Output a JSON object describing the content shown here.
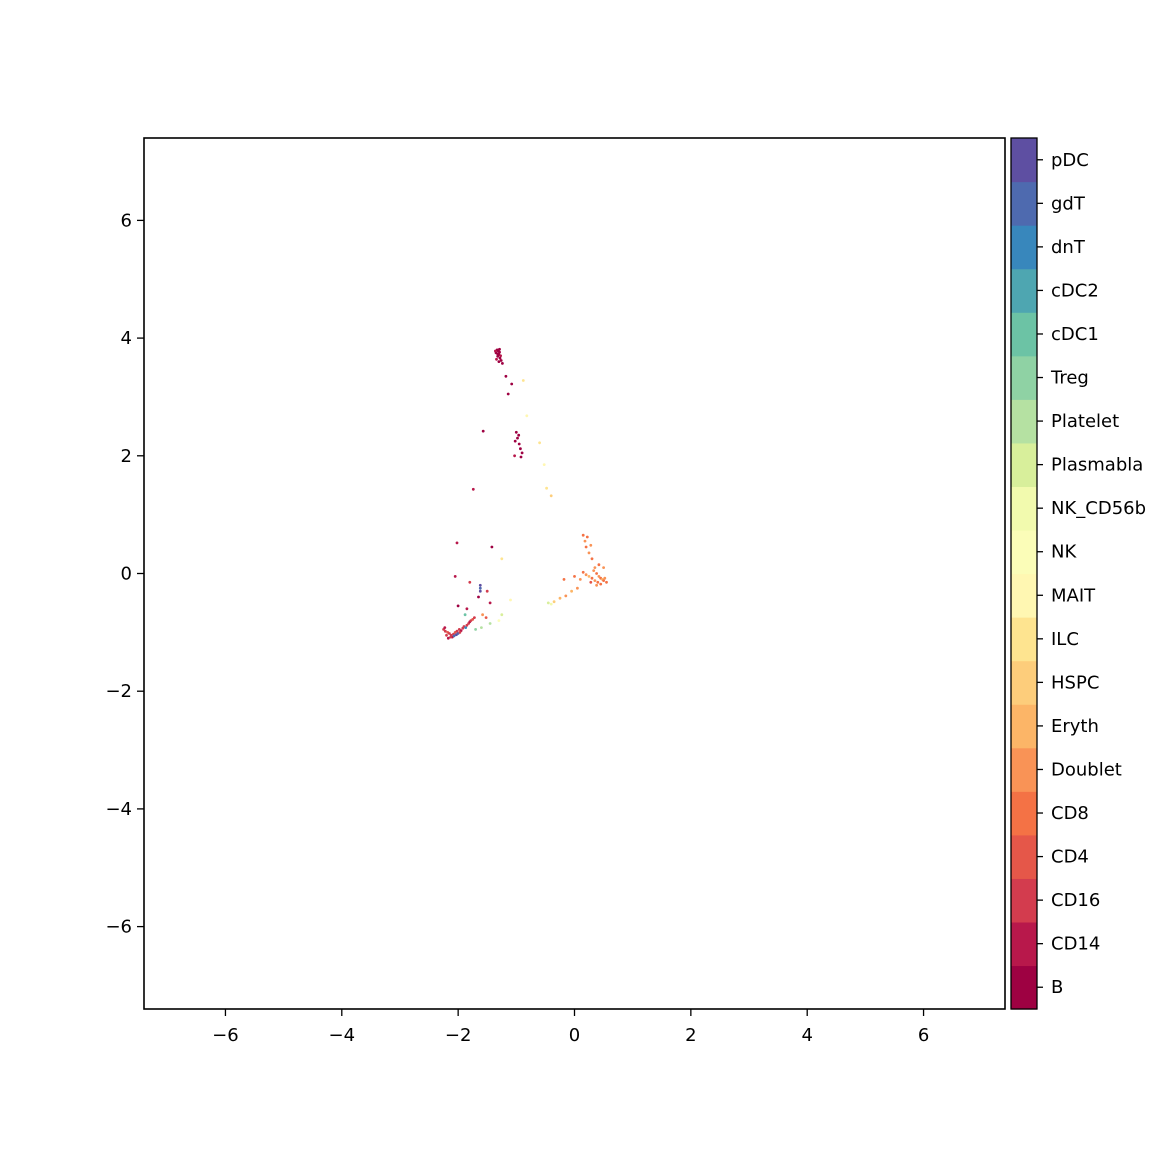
{
  "chart_data": {
    "type": "scatter",
    "title": "",
    "xlabel": "",
    "ylabel": "",
    "xlim": [
      -7.4,
      7.4
    ],
    "ylim": [
      -7.4,
      7.4
    ],
    "xticks": [
      -6,
      -4,
      -2,
      0,
      2,
      4,
      6
    ],
    "yticks": [
      -6,
      -4,
      -2,
      0,
      2,
      4,
      6
    ],
    "tick_labels": {
      "x": [
        "−6",
        "−4",
        "−2",
        "0",
        "2",
        "4",
        "6"
      ],
      "y": [
        "−6",
        "−4",
        "−2",
        "0",
        "2",
        "4",
        "6"
      ]
    },
    "grid": false,
    "legend": "colorbar-right",
    "colorbar_labels": [
      "B",
      "CD14",
      "CD16",
      "CD4",
      "CD8",
      "Doublet",
      "Eryth",
      "HSPC",
      "ILC",
      "MAIT",
      "NK",
      "NK_CD56b",
      "Plasmabla",
      "Platelet",
      "Treg",
      "cDC1",
      "cDC2",
      "dnT",
      "gdT",
      "pDC"
    ],
    "colorbar_colors": [
      "#9e0142",
      "#b8184b",
      "#d33c4e",
      "#e55749",
      "#f47245",
      "#f99356",
      "#fcb567",
      "#fdcd7b",
      "#fee490",
      "#fff7b2",
      "#fbfdb8",
      "#f2faae",
      "#d8ef9b",
      "#b5e1a2",
      "#8fd2a4",
      "#6cc3a5",
      "#4ea6b1",
      "#3887bc",
      "#4e6aaf",
      "#5e4fa2"
    ],
    "points": [
      {
        "x": -1.33,
        "y": 3.8,
        "c": 0
      },
      {
        "x": -1.31,
        "y": 3.78,
        "c": 0
      },
      {
        "x": -1.29,
        "y": 3.76,
        "c": 0
      },
      {
        "x": -1.35,
        "y": 3.75,
        "c": 0
      },
      {
        "x": -1.3,
        "y": 3.72,
        "c": 0
      },
      {
        "x": -1.27,
        "y": 3.7,
        "c": 1
      },
      {
        "x": -1.32,
        "y": 3.69,
        "c": 0
      },
      {
        "x": -1.28,
        "y": 3.66,
        "c": 0
      },
      {
        "x": -1.34,
        "y": 3.64,
        "c": 1
      },
      {
        "x": -1.26,
        "y": 3.62,
        "c": 0
      },
      {
        "x": -1.3,
        "y": 3.6,
        "c": 0
      },
      {
        "x": -1.24,
        "y": 3.57,
        "c": 0
      },
      {
        "x": -1.32,
        "y": 3.73,
        "c": 0
      },
      {
        "x": -1.29,
        "y": 3.81,
        "c": 0
      },
      {
        "x": -1.36,
        "y": 3.78,
        "c": 1
      },
      {
        "x": -1.18,
        "y": 3.35,
        "c": 0
      },
      {
        "x": -1.14,
        "y": 3.05,
        "c": 0
      },
      {
        "x": -1.08,
        "y": 3.22,
        "c": 0
      },
      {
        "x": -0.88,
        "y": 3.28,
        "c": 8
      },
      {
        "x": -0.82,
        "y": 2.68,
        "c": 9
      },
      {
        "x": -1.0,
        "y": 2.4,
        "c": 0
      },
      {
        "x": -0.98,
        "y": 2.3,
        "c": 0
      },
      {
        "x": -0.95,
        "y": 2.2,
        "c": 0
      },
      {
        "x": -0.93,
        "y": 2.12,
        "c": 0
      },
      {
        "x": -1.02,
        "y": 2.25,
        "c": 0
      },
      {
        "x": -0.9,
        "y": 2.05,
        "c": 0
      },
      {
        "x": -0.92,
        "y": 1.98,
        "c": 0
      },
      {
        "x": -1.03,
        "y": 2.0,
        "c": 1
      },
      {
        "x": -0.96,
        "y": 2.35,
        "c": 0
      },
      {
        "x": -1.57,
        "y": 2.42,
        "c": 0
      },
      {
        "x": -0.6,
        "y": 2.22,
        "c": 8
      },
      {
        "x": -0.52,
        "y": 1.85,
        "c": 9
      },
      {
        "x": -0.48,
        "y": 1.45,
        "c": 8
      },
      {
        "x": -1.74,
        "y": 1.43,
        "c": 1
      },
      {
        "x": -0.4,
        "y": 1.32,
        "c": 7
      },
      {
        "x": -1.25,
        "y": 0.25,
        "c": 8
      },
      {
        "x": -2.02,
        "y": 0.52,
        "c": 1
      },
      {
        "x": -1.42,
        "y": 0.45,
        "c": 0
      },
      {
        "x": -2.05,
        "y": -0.05,
        "c": 1
      },
      {
        "x": -1.8,
        "y": -0.15,
        "c": 2
      },
      {
        "x": -1.62,
        "y": -0.2,
        "c": 19
      },
      {
        "x": -1.62,
        "y": -0.25,
        "c": 18
      },
      {
        "x": -1.62,
        "y": -0.3,
        "c": 19
      },
      {
        "x": -1.65,
        "y": -0.4,
        "c": 0
      },
      {
        "x": -1.5,
        "y": -0.3,
        "c": 2
      },
      {
        "x": -1.45,
        "y": -0.5,
        "c": 1
      },
      {
        "x": -2.0,
        "y": -0.55,
        "c": 0
      },
      {
        "x": -1.85,
        "y": -0.6,
        "c": 1
      },
      {
        "x": -1.52,
        "y": -0.75,
        "c": 3
      },
      {
        "x": -1.58,
        "y": -0.7,
        "c": 5
      },
      {
        "x": -1.1,
        "y": -0.45,
        "c": 9
      },
      {
        "x": -1.45,
        "y": -0.85,
        "c": 13
      },
      {
        "x": -1.25,
        "y": -0.7,
        "c": 12
      },
      {
        "x": -1.3,
        "y": -0.8,
        "c": 10
      },
      {
        "x": -2.25,
        "y": -0.95,
        "c": 2
      },
      {
        "x": -2.22,
        "y": -0.98,
        "c": 2
      },
      {
        "x": -2.18,
        "y": -1.0,
        "c": 3
      },
      {
        "x": -2.15,
        "y": -1.02,
        "c": 2
      },
      {
        "x": -2.12,
        "y": -1.05,
        "c": 2
      },
      {
        "x": -2.1,
        "y": -1.08,
        "c": 1
      },
      {
        "x": -2.08,
        "y": -1.03,
        "c": 2
      },
      {
        "x": -2.05,
        "y": -1.0,
        "c": 3
      },
      {
        "x": -2.02,
        "y": -0.98,
        "c": 2
      },
      {
        "x": -2.0,
        "y": -1.02,
        "c": 18
      },
      {
        "x": -1.98,
        "y": -0.95,
        "c": 2
      },
      {
        "x": -1.95,
        "y": -0.97,
        "c": 1
      },
      {
        "x": -1.92,
        "y": -0.93,
        "c": 2
      },
      {
        "x": -1.9,
        "y": -0.9,
        "c": 2
      },
      {
        "x": -1.87,
        "y": -0.92,
        "c": 17
      },
      {
        "x": -1.85,
        "y": -0.88,
        "c": 2
      },
      {
        "x": -1.82,
        "y": -0.85,
        "c": 2
      },
      {
        "x": -1.8,
        "y": -0.82,
        "c": 1
      },
      {
        "x": -1.78,
        "y": -0.8,
        "c": 2
      },
      {
        "x": -1.75,
        "y": -0.78,
        "c": 3
      },
      {
        "x": -1.72,
        "y": -0.75,
        "c": 2
      },
      {
        "x": -2.2,
        "y": -1.05,
        "c": 2
      },
      {
        "x": -2.17,
        "y": -1.1,
        "c": 1
      },
      {
        "x": -2.13,
        "y": -1.08,
        "c": 2
      },
      {
        "x": -2.07,
        "y": -1.06,
        "c": 18
      },
      {
        "x": -2.03,
        "y": -1.04,
        "c": 19
      },
      {
        "x": -1.97,
        "y": -1.0,
        "c": 2
      },
      {
        "x": -2.23,
        "y": -0.92,
        "c": 1
      },
      {
        "x": -1.7,
        "y": -0.95,
        "c": 14
      },
      {
        "x": -1.6,
        "y": -0.92,
        "c": 13
      },
      {
        "x": -1.88,
        "y": -0.7,
        "c": 15
      },
      {
        "x": 0.15,
        "y": 0.65,
        "c": 4
      },
      {
        "x": 0.18,
        "y": 0.55,
        "c": 5
      },
      {
        "x": 0.2,
        "y": 0.45,
        "c": 4
      },
      {
        "x": 0.25,
        "y": 0.35,
        "c": 5
      },
      {
        "x": 0.3,
        "y": 0.25,
        "c": 4
      },
      {
        "x": 0.35,
        "y": 0.1,
        "c": 5
      },
      {
        "x": 0.38,
        "y": 0.0,
        "c": 4
      },
      {
        "x": 0.42,
        "y": -0.05,
        "c": 5
      },
      {
        "x": 0.45,
        "y": -0.08,
        "c": 4
      },
      {
        "x": 0.48,
        "y": -0.1,
        "c": 6
      },
      {
        "x": 0.5,
        "y": -0.12,
        "c": 4
      },
      {
        "x": 0.52,
        "y": -0.08,
        "c": 5
      },
      {
        "x": 0.4,
        "y": -0.15,
        "c": 4
      },
      {
        "x": 0.35,
        "y": -0.12,
        "c": 5
      },
      {
        "x": 0.3,
        "y": -0.08,
        "c": 4
      },
      {
        "x": 0.25,
        "y": -0.05,
        "c": 6
      },
      {
        "x": 0.2,
        "y": -0.02,
        "c": 5
      },
      {
        "x": 0.15,
        "y": 0.02,
        "c": 4
      },
      {
        "x": 0.1,
        "y": -0.1,
        "c": 5
      },
      {
        "x": 0.45,
        "y": -0.18,
        "c": 4
      },
      {
        "x": 0.38,
        "y": -0.2,
        "c": 5
      },
      {
        "x": 0.55,
        "y": -0.15,
        "c": 4
      },
      {
        "x": 0.33,
        "y": 0.05,
        "c": 5
      },
      {
        "x": 0.28,
        "y": -0.15,
        "c": 3
      },
      {
        "x": 0.05,
        "y": -0.25,
        "c": 5
      },
      {
        "x": -0.05,
        "y": -0.3,
        "c": 6
      },
      {
        "x": -0.15,
        "y": -0.38,
        "c": 5
      },
      {
        "x": -0.25,
        "y": -0.42,
        "c": 6
      },
      {
        "x": -0.35,
        "y": -0.48,
        "c": 7
      },
      {
        "x": -0.45,
        "y": -0.5,
        "c": 12
      },
      {
        "x": -0.4,
        "y": -0.52,
        "c": 11
      },
      {
        "x": 0.0,
        "y": -0.05,
        "c": 4
      },
      {
        "x": 0.5,
        "y": 0.1,
        "c": 5
      },
      {
        "x": 0.42,
        "y": 0.15,
        "c": 4
      },
      {
        "x": -0.18,
        "y": -0.1,
        "c": 4
      },
      {
        "x": 0.28,
        "y": 0.48,
        "c": 5
      },
      {
        "x": 0.22,
        "y": 0.62,
        "c": 4
      }
    ]
  }
}
